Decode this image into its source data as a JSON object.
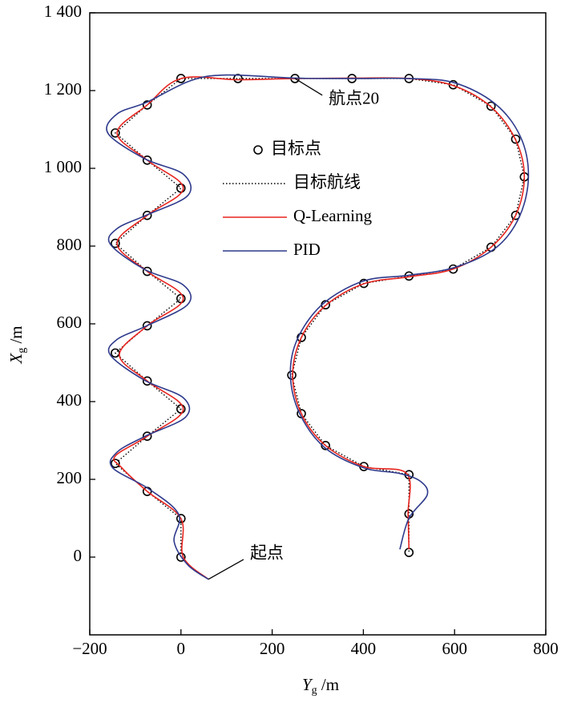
{
  "chart_data": {
    "type": "line",
    "xlabel": {
      "main": "Y",
      "sub": "g",
      "unit": " /m"
    },
    "ylabel": {
      "main": "X",
      "sub": "g",
      "unit": " /m"
    },
    "xlim": [
      -200,
      800
    ],
    "xticks": [
      {
        "value": -200,
        "label": "−200"
      },
      0,
      200,
      400,
      600,
      800
    ],
    "ylim": [
      -200,
      1400
    ],
    "yticks": [
      0,
      200,
      400,
      600,
      800,
      {
        "value": 1000,
        "label": "1 000"
      },
      {
        "value": 1200,
        "label": "1 200"
      },
      {
        "value": 1400,
        "label": "1 400"
      }
    ],
    "legend": "upper center",
    "series": [
      {
        "name": "目标点",
        "color": "#000000",
        "style": "marker",
        "x": [
          0,
          0,
          -74,
          -144,
          -74,
          0,
          -74,
          -144,
          -74,
          0,
          -74,
          -144,
          -74,
          0,
          -74,
          -144,
          -74,
          0,
          125,
          250,
          375,
          500,
          597,
          680,
          734,
          753,
          734,
          680,
          597,
          500,
          401,
          317,
          264,
          243,
          264,
          317,
          401,
          500,
          500,
          500
        ],
        "y": [
          0,
          99,
          169,
          241,
          311,
          381,
          453,
          525,
          595,
          665,
          735,
          807,
          879,
          949,
          1021,
          1091,
          1163,
          1231,
          1231,
          1231,
          1231,
          1231,
          1215,
          1160,
          1075,
          978,
          879,
          797,
          741,
          723,
          704,
          649,
          565,
          468,
          369,
          287,
          233,
          212,
          111,
          12
        ]
      },
      {
        "name": "目标航线",
        "color": "#000000",
        "style": "dotted",
        "x": [
          0,
          0,
          -74,
          -144,
          -74,
          0,
          -74,
          -144,
          -74,
          0,
          -74,
          -144,
          -74,
          0,
          -74,
          -144,
          -74,
          0,
          125,
          250,
          375,
          500,
          597,
          680,
          734,
          753,
          734,
          680,
          597,
          500,
          401,
          317,
          264,
          243,
          264,
          317,
          401,
          500,
          500,
          500
        ],
        "y": [
          0,
          99,
          169,
          241,
          311,
          381,
          453,
          525,
          595,
          665,
          735,
          807,
          879,
          949,
          1021,
          1091,
          1163,
          1231,
          1231,
          1231,
          1231,
          1231,
          1215,
          1160,
          1075,
          978,
          879,
          797,
          741,
          723,
          704,
          649,
          565,
          468,
          369,
          287,
          233,
          212,
          111,
          12
        ]
      },
      {
        "name": "Q-Learning",
        "color": "#e8251f",
        "style": "smooth",
        "x": [
          60,
          5,
          0,
          -74,
          -130,
          -144,
          -74,
          5,
          -74,
          -135,
          -74,
          5,
          -74,
          -140,
          -74,
          5,
          -74,
          -140,
          -74,
          0,
          125,
          250,
          375,
          500,
          597,
          680,
          734,
          753,
          734,
          680,
          597,
          500,
          401,
          317,
          264,
          245,
          264,
          317,
          401,
          495,
          498,
          500
        ],
        "y": [
          -57,
          0,
          99,
          169,
          230,
          260,
          311,
          381,
          453,
          520,
          595,
          665,
          735,
          807,
          879,
          949,
          1021,
          1091,
          1163,
          1231,
          1228,
          1231,
          1232,
          1231,
          1213,
          1158,
          1073,
          978,
          879,
          797,
          741,
          721,
          703,
          647,
          565,
          468,
          369,
          287,
          233,
          215,
          111,
          20
        ]
      },
      {
        "name": "PID",
        "color": "#2e3a8c",
        "style": "smooth",
        "x": [
          60,
          15,
          -15,
          -5,
          -70,
          -150,
          -140,
          -80,
          10,
          5,
          -80,
          -155,
          -140,
          -75,
          15,
          5,
          -80,
          -155,
          -140,
          -75,
          15,
          5,
          -80,
          -160,
          -140,
          -75,
          20,
          100,
          250,
          375,
          500,
          600,
          690,
          745,
          762,
          742,
          690,
          600,
          500,
          400,
          310,
          255,
          240,
          260,
          315,
          400,
          480,
          525,
          540,
          500,
          480
        ],
        "y": [
          -57,
          -20,
          40,
          110,
          175,
          230,
          270,
          310,
          360,
          410,
          455,
          520,
          560,
          595,
          650,
          700,
          740,
          805,
          845,
          880,
          930,
          985,
          1025,
          1090,
          1140,
          1170,
          1225,
          1240,
          1232,
          1231,
          1231,
          1220,
          1165,
          1080,
          978,
          875,
          795,
          745,
          725,
          710,
          650,
          560,
          468,
          370,
          282,
          230,
          215,
          195,
          160,
          100,
          20
        ]
      }
    ],
    "annotations": [
      {
        "text": "起点",
        "x": 60,
        "y": -57
      },
      {
        "text": "航点20",
        "x": 250,
        "y": 1231
      }
    ]
  }
}
